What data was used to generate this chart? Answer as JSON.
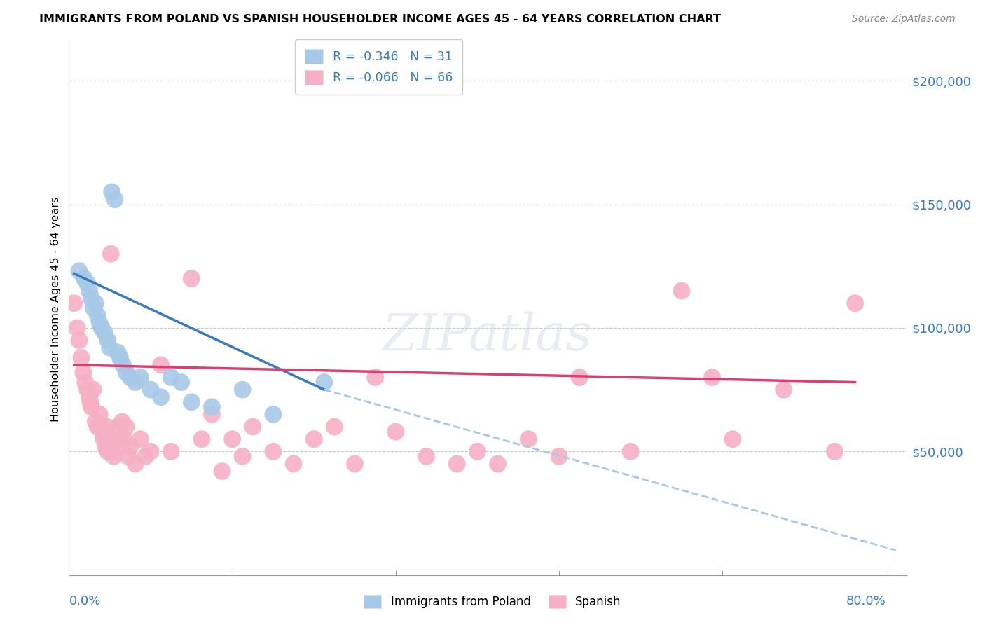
{
  "title": "IMMIGRANTS FROM POLAND VS SPANISH HOUSEHOLDER INCOME AGES 45 - 64 YEARS CORRELATION CHART",
  "source": "Source: ZipAtlas.com",
  "ylabel": "Householder Income Ages 45 - 64 years",
  "blue_color": "#a8c8e8",
  "pink_color": "#f5b0c5",
  "blue_line_color": "#3a7abf",
  "pink_line_color": "#d94070",
  "blue_dash_color": "#a8c8e8",
  "axis_label_color": "#3a7abf",
  "grid_color": "#c8c8c8",
  "background_color": "#ffffff",
  "xlim": [
    0,
    82
  ],
  "ylim": [
    0,
    215000
  ],
  "ytick_vals": [
    50000,
    100000,
    150000,
    200000
  ],
  "ytick_labels": [
    "$50,000",
    "$100,000",
    "$150,000",
    "$200,000"
  ],
  "legend1_r": "-0.346",
  "legend1_n": "31",
  "legend2_r": "-0.066",
  "legend2_n": "66",
  "watermark": "ZIPatlas",
  "bottom_legend_labels": [
    "Immigrants from Poland",
    "Spanish"
  ],
  "poland_x": [
    1.0,
    1.5,
    1.8,
    2.0,
    2.2,
    2.4,
    2.6,
    2.8,
    3.0,
    3.2,
    3.5,
    3.8,
    4.0,
    4.2,
    4.5,
    4.8,
    5.0,
    5.3,
    5.6,
    6.0,
    6.5,
    7.0,
    8.0,
    9.0,
    10.0,
    11.0,
    12.0,
    14.0,
    17.0,
    20.0,
    25.0
  ],
  "poland_y": [
    123000,
    120000,
    118000,
    115000,
    112000,
    108000,
    110000,
    105000,
    102000,
    100000,
    98000,
    95000,
    92000,
    155000,
    152000,
    90000,
    88000,
    85000,
    82000,
    80000,
    78000,
    80000,
    75000,
    72000,
    80000,
    78000,
    70000,
    68000,
    75000,
    65000,
    78000
  ],
  "spanish_x": [
    0.5,
    0.8,
    1.0,
    1.2,
    1.4,
    1.6,
    1.8,
    2.0,
    2.1,
    2.2,
    2.4,
    2.6,
    2.8,
    3.0,
    3.1,
    3.3,
    3.4,
    3.6,
    3.7,
    3.8,
    4.0,
    4.1,
    4.2,
    4.4,
    4.6,
    4.8,
    5.0,
    5.2,
    5.4,
    5.6,
    5.8,
    6.0,
    6.5,
    7.0,
    7.5,
    8.0,
    9.0,
    10.0,
    12.0,
    13.0,
    14.0,
    15.0,
    16.0,
    17.0,
    18.0,
    20.0,
    22.0,
    24.0,
    26.0,
    28.0,
    30.0,
    32.0,
    35.0,
    38.0,
    40.0,
    42.0,
    45.0,
    48.0,
    50.0,
    55.0,
    60.0,
    63.0,
    65.0,
    70.0,
    75.0,
    77.0
  ],
  "spanish_y": [
    110000,
    100000,
    95000,
    88000,
    82000,
    78000,
    75000,
    72000,
    70000,
    68000,
    75000,
    62000,
    60000,
    65000,
    60000,
    58000,
    55000,
    52000,
    60000,
    50000,
    55000,
    130000,
    52000,
    48000,
    50000,
    60000,
    55000,
    62000,
    55000,
    60000,
    48000,
    52000,
    45000,
    55000,
    48000,
    50000,
    85000,
    50000,
    120000,
    55000,
    65000,
    42000,
    55000,
    48000,
    60000,
    50000,
    45000,
    55000,
    60000,
    45000,
    80000,
    58000,
    48000,
    45000,
    50000,
    45000,
    55000,
    48000,
    80000,
    50000,
    115000,
    80000,
    55000,
    75000,
    50000,
    110000
  ],
  "poland_trend_x0": 0.5,
  "poland_trend_x1": 25.0,
  "poland_trend_y0": 122000,
  "poland_trend_y1": 75000,
  "poland_dash_x0": 25.0,
  "poland_dash_x1": 81.0,
  "poland_dash_y0": 75000,
  "poland_dash_y1": 10000,
  "spanish_trend_x0": 0.5,
  "spanish_trend_x1": 77.0,
  "spanish_trend_y0": 85000,
  "spanish_trend_y1": 78000
}
